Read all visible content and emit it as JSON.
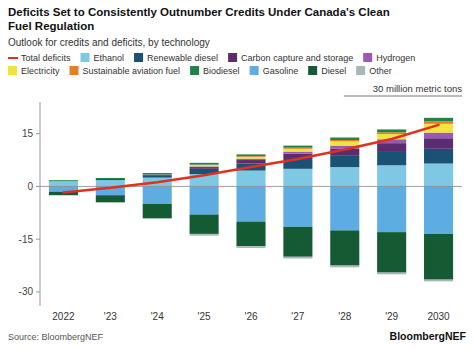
{
  "chart_data": {
    "type": "bar",
    "stacked": true,
    "grid": false,
    "title": "Deficits Set to Consistently Outnumber Credits Under Canada's Clean\nFuel Regulation",
    "subtitle": "Outlook for credits and deficits, by technology",
    "annotation": "30 million metric tons",
    "source": "Source: BloombergNEF",
    "watermark": "BloombergNEF",
    "categories": [
      "2022",
      "'23",
      "'24",
      "'25",
      "'26",
      "'27",
      "'28",
      "'29",
      "2030"
    ],
    "ylim": [
      -34,
      24
    ],
    "yticks": [
      -30,
      -15,
      0,
      15
    ],
    "series": [
      {
        "name": "Total deficits",
        "type": "line",
        "color": "#e03020",
        "values": [
          -1.7,
          -0.4,
          1.2,
          3.2,
          5.5,
          7.8,
          10.5,
          13.5,
          17.5
        ]
      },
      {
        "name": "Ethanol",
        "color": "#7ec8e3",
        "values": [
          1.5,
          1.8,
          2.5,
          3.5,
          4.5,
          5.0,
          5.5,
          6.0,
          6.5
        ]
      },
      {
        "name": "Renewable diesel",
        "color": "#1a5276",
        "values": [
          0.1,
          0.3,
          0.7,
          1.5,
          2.0,
          2.8,
          3.2,
          3.8,
          4.2
        ]
      },
      {
        "name": "Carbon capture and storage",
        "color": "#5b2c6f",
        "values": [
          0.0,
          0.0,
          0.1,
          0.5,
          1.0,
          1.5,
          2.0,
          2.5,
          3.0
        ]
      },
      {
        "name": "Hydrogen",
        "color": "#9b59b6",
        "values": [
          0.0,
          0.0,
          0.1,
          0.2,
          0.4,
          0.6,
          0.9,
          1.1,
          1.6
        ]
      },
      {
        "name": "Electricity",
        "color": "#f0e442",
        "values": [
          0.0,
          0.0,
          0.0,
          0.4,
          0.5,
          0.8,
          1.2,
          1.5,
          2.5
        ]
      },
      {
        "name": "Sustainable aviation fuel",
        "color": "#e67e22",
        "values": [
          0.0,
          0.0,
          0.0,
          0.1,
          0.2,
          0.3,
          0.4,
          0.5,
          0.7
        ]
      },
      {
        "name": "Biodiesel",
        "color": "#1e8449",
        "values": [
          0.2,
          0.3,
          0.4,
          0.5,
          0.5,
          0.6,
          0.7,
          0.8,
          1.0
        ]
      },
      {
        "name": "Gasoline",
        "color": "#5dade2",
        "values": [
          -1.5,
          -2.5,
          -5.0,
          -8.0,
          -10.0,
          -11.5,
          -12.5,
          -13.0,
          -13.5
        ]
      },
      {
        "name": "Diesel",
        "color": "#145a32",
        "values": [
          -1.0,
          -2.0,
          -4.0,
          -5.5,
          -7.0,
          -8.5,
          -10.0,
          -11.5,
          -13.0
        ]
      },
      {
        "name": "Other",
        "color": "#aab7b8",
        "values": [
          0.0,
          -0.2,
          -0.3,
          -0.5,
          -0.5,
          -0.5,
          -0.5,
          -0.5,
          -0.5
        ]
      }
    ]
  }
}
